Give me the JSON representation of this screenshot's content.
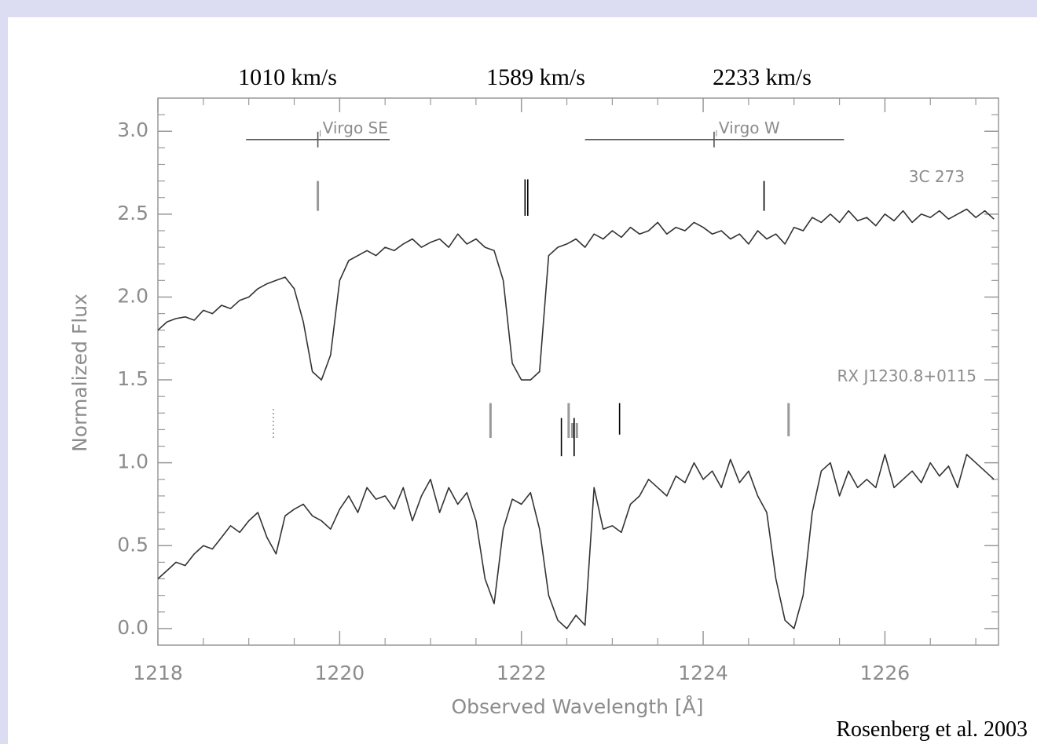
{
  "chart_data": {
    "type": "line",
    "xlabel": "Observed Wavelength [Å]",
    "ylabel": "Normalized Flux",
    "xlim": [
      1218,
      1227.25
    ],
    "ylim": [
      -0.1,
      3.2
    ],
    "xticks": [
      1218,
      1220,
      1222,
      1224,
      1226
    ],
    "yticks": [
      {
        "value": 0,
        "label": "0.0"
      },
      0.5,
      {
        "value": 1,
        "label": "1.0"
      },
      1.5,
      {
        "value": 2,
        "label": "2.0"
      },
      2.5,
      {
        "value": 3,
        "label": "3.0"
      }
    ],
    "xminorticks": [
      1218.5,
      1219,
      1219.5,
      1220.5,
      1221,
      1221.5,
      1222.5,
      1223,
      1223.5,
      1224.5,
      1225,
      1225.5,
      1226.5,
      1227
    ],
    "yminorticks": [
      0.1,
      0.2,
      0.3,
      0.4,
      0.6,
      0.7,
      0.8,
      0.9,
      1.1,
      1.2,
      1.3,
      1.4,
      1.6,
      1.7,
      1.8,
      1.9,
      2.1,
      2.2,
      2.3,
      2.4,
      2.6,
      2.7,
      2.8,
      2.9,
      3.1
    ],
    "x": [
      1218.0,
      1218.1,
      1218.2,
      1218.3,
      1218.4,
      1218.5,
      1218.6,
      1218.7,
      1218.8,
      1218.9,
      1219.0,
      1219.1,
      1219.2,
      1219.3,
      1219.4,
      1219.5,
      1219.6,
      1219.7,
      1219.8,
      1219.9,
      1220.0,
      1220.1,
      1220.2,
      1220.3,
      1220.4,
      1220.5,
      1220.6,
      1220.7,
      1220.8,
      1220.9,
      1221.0,
      1221.1,
      1221.2,
      1221.3,
      1221.4,
      1221.5,
      1221.6,
      1221.7,
      1221.8,
      1221.9,
      1222.0,
      1222.1,
      1222.2,
      1222.3,
      1222.4,
      1222.5,
      1222.6,
      1222.7,
      1222.8,
      1222.9,
      1223.0,
      1223.1,
      1223.2,
      1223.3,
      1223.4,
      1223.5,
      1223.6,
      1223.7,
      1223.8,
      1223.9,
      1224.0,
      1224.1,
      1224.2,
      1224.3,
      1224.4,
      1224.5,
      1224.6,
      1224.7,
      1224.8,
      1224.9,
      1225.0,
      1225.1,
      1225.2,
      1225.3,
      1225.4,
      1225.5,
      1225.6,
      1225.7,
      1225.8,
      1225.9,
      1226.0,
      1226.1,
      1226.2,
      1226.3,
      1226.4,
      1226.5,
      1226.6,
      1226.7,
      1226.8,
      1226.9,
      1227.0,
      1227.1,
      1227.2
    ],
    "series": [
      {
        "name": "3C 273",
        "color": "#333333",
        "values": [
          1.8,
          1.85,
          1.87,
          1.88,
          1.86,
          1.92,
          1.9,
          1.95,
          1.93,
          1.98,
          2.0,
          2.05,
          2.08,
          2.1,
          2.12,
          2.05,
          1.85,
          1.55,
          1.5,
          1.65,
          2.1,
          2.22,
          2.25,
          2.28,
          2.25,
          2.3,
          2.28,
          2.32,
          2.35,
          2.3,
          2.33,
          2.35,
          2.3,
          2.38,
          2.32,
          2.35,
          2.3,
          2.28,
          2.1,
          1.6,
          1.5,
          1.5,
          1.55,
          2.25,
          2.3,
          2.32,
          2.35,
          2.3,
          2.38,
          2.35,
          2.4,
          2.36,
          2.42,
          2.38,
          2.4,
          2.45,
          2.38,
          2.42,
          2.4,
          2.45,
          2.42,
          2.38,
          2.4,
          2.35,
          2.38,
          2.32,
          2.4,
          2.35,
          2.38,
          2.32,
          2.42,
          2.4,
          2.48,
          2.45,
          2.5,
          2.45,
          2.52,
          2.46,
          2.48,
          2.43,
          2.5,
          2.46,
          2.52,
          2.45,
          2.5,
          2.48,
          2.52,
          2.47,
          2.5,
          2.53,
          2.48,
          2.52,
          2.47
        ]
      },
      {
        "name": "RX J1230.8+0115",
        "color": "#333333",
        "values": [
          0.3,
          0.35,
          0.4,
          0.38,
          0.45,
          0.5,
          0.48,
          0.55,
          0.62,
          0.58,
          0.65,
          0.7,
          0.55,
          0.45,
          0.68,
          0.72,
          0.75,
          0.68,
          0.65,
          0.6,
          0.72,
          0.8,
          0.7,
          0.85,
          0.78,
          0.8,
          0.72,
          0.85,
          0.65,
          0.8,
          0.9,
          0.7,
          0.85,
          0.75,
          0.82,
          0.65,
          0.3,
          0.15,
          0.6,
          0.78,
          0.75,
          0.82,
          0.6,
          0.2,
          0.05,
          0.0,
          0.08,
          0.02,
          0.85,
          0.6,
          0.62,
          0.58,
          0.75,
          0.8,
          0.9,
          0.85,
          0.8,
          0.92,
          0.88,
          1.0,
          0.9,
          0.95,
          0.85,
          1.02,
          0.88,
          0.95,
          0.8,
          0.7,
          0.3,
          0.05,
          0.0,
          0.2,
          0.7,
          0.95,
          1.0,
          0.8,
          0.95,
          0.85,
          0.9,
          0.85,
          1.05,
          0.85,
          0.9,
          0.95,
          0.88,
          1.0,
          0.92,
          0.98,
          0.85,
          1.05,
          1.0,
          0.95,
          0.9
        ]
      }
    ],
    "ranges": [
      {
        "label": "Virgo SE",
        "x": [
          1218.97,
          1220.55
        ],
        "center": 1219.76,
        "y": 2.95
      },
      {
        "label": "Virgo W",
        "x": [
          1222.7,
          1225.55
        ],
        "center": 1224.12,
        "y": 2.95
      }
    ],
    "line_markers": [
      {
        "x": 1219.76,
        "y": [
          2.52,
          2.7
        ],
        "color": "#999999"
      },
      {
        "x": 1222.04,
        "y": [
          2.49,
          2.71
        ],
        "color": "#000000"
      },
      {
        "x": 1222.07,
        "y": [
          2.49,
          2.71
        ],
        "color": "#000000"
      },
      {
        "x": 1224.67,
        "y": [
          2.52,
          2.7
        ],
        "color": "#000000"
      },
      {
        "x": 1219.27,
        "y": [
          1.15,
          1.34
        ],
        "color": "#999999",
        "style": "dotted"
      },
      {
        "x": 1221.66,
        "y": [
          1.15,
          1.36
        ],
        "color": "#999999"
      },
      {
        "x": 1222.52,
        "y": [
          1.15,
          1.36
        ],
        "color": "#999999"
      },
      {
        "x": 1222.56,
        "y": [
          1.15,
          1.24
        ],
        "color": "#999999"
      },
      {
        "x": 1222.61,
        "y": [
          1.15,
          1.24
        ],
        "color": "#999999"
      },
      {
        "x": 1222.44,
        "y": [
          1.04,
          1.27
        ],
        "color": "#000000"
      },
      {
        "x": 1222.58,
        "y": [
          1.04,
          1.27
        ],
        "color": "#000000"
      },
      {
        "x": 1223.08,
        "y": [
          1.17,
          1.36
        ],
        "color": "#000000"
      },
      {
        "x": 1224.94,
        "y": [
          1.16,
          1.36
        ],
        "color": "#999999"
      }
    ],
    "velocity_labels": [
      "1010 km/s",
      "1589 km/s",
      "2233 km/s"
    ]
  },
  "credit": "Rosenberg et al. 2003"
}
